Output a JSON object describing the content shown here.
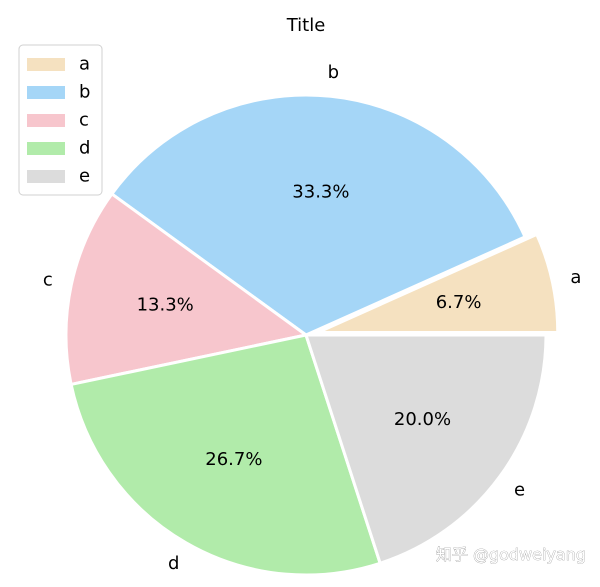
{
  "chart_data": {
    "type": "pie",
    "title": "Title",
    "labels": [
      "a",
      "b",
      "c",
      "d",
      "e"
    ],
    "values": [
      6.7,
      33.3,
      13.3,
      26.7,
      20.0
    ],
    "percent_labels": [
      "6.7%",
      "33.3%",
      "13.3%",
      "26.7%",
      "20.0%"
    ],
    "colors": [
      "#f5e1c0",
      "#a5d6f7",
      "#f7c6cd",
      "#b1ebaa",
      "#dcdcdc"
    ],
    "explode": [
      0.05,
      0,
      0,
      0,
      0
    ],
    "start_angle_deg": 0,
    "direction": "counterclockwise",
    "legend": {
      "placement": "top-left",
      "entries": [
        "a",
        "b",
        "c",
        "d",
        "e"
      ]
    }
  },
  "watermark": "知乎 @godweiyang"
}
